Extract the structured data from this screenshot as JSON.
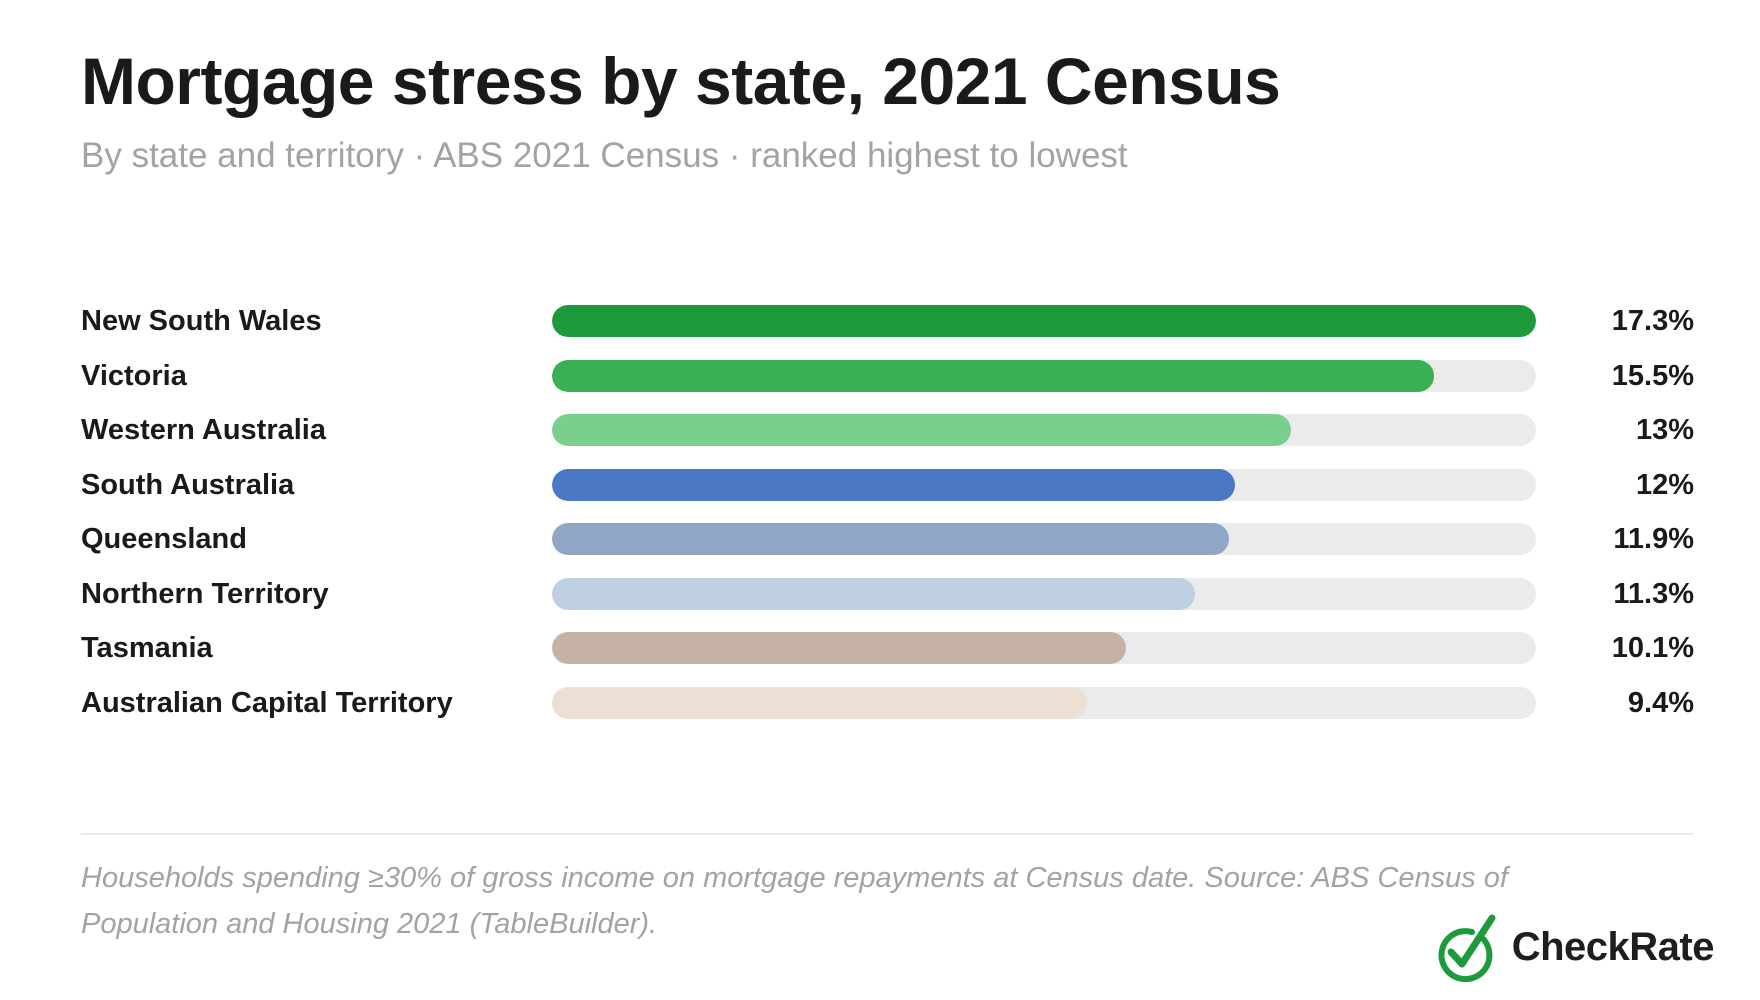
{
  "header": {
    "title": "Mortgage stress by state, 2021 Census",
    "subtitle": "By state and territory · ABS 2021 Census · ranked highest to lowest"
  },
  "chart_data": {
    "type": "bar",
    "orientation": "horizontal",
    "title": "Mortgage stress by state, 2021 Census",
    "subtitle": "By state and territory · ABS 2021 Census · ranked highest to lowest",
    "xlim": [
      0,
      17.3
    ],
    "grid": false,
    "categories": [
      "New South Wales",
      "Victoria",
      "Western Australia",
      "South Australia",
      "Queensland",
      "Northern Territory",
      "Tasmania",
      "Australian Capital Territory"
    ],
    "values": [
      17.3,
      15.5,
      13,
      12,
      11.9,
      11.3,
      10.1,
      9.4
    ],
    "value_labels": [
      "17.3%",
      "15.5%",
      "13%",
      "12%",
      "11.9%",
      "11.3%",
      "10.1%",
      "9.4%"
    ],
    "colors": [
      "#1d9a3b",
      "#39b054",
      "#7acf8f",
      "#4a78c4",
      "#8fa6c6",
      "#bfd0e3",
      "#c5b2a5",
      "#ecdfd4"
    ],
    "track_color": "#ebebeb"
  },
  "footer": {
    "note": "Households spending ≥30% of gross income on mortgage repayments at Census date. Source: ABS Census of Population and Housing 2021 (TableBuilder).",
    "brand_name": "CheckRate",
    "brand_icon": "check-circle-logo-icon",
    "brand_color": "#1d9a3b"
  }
}
